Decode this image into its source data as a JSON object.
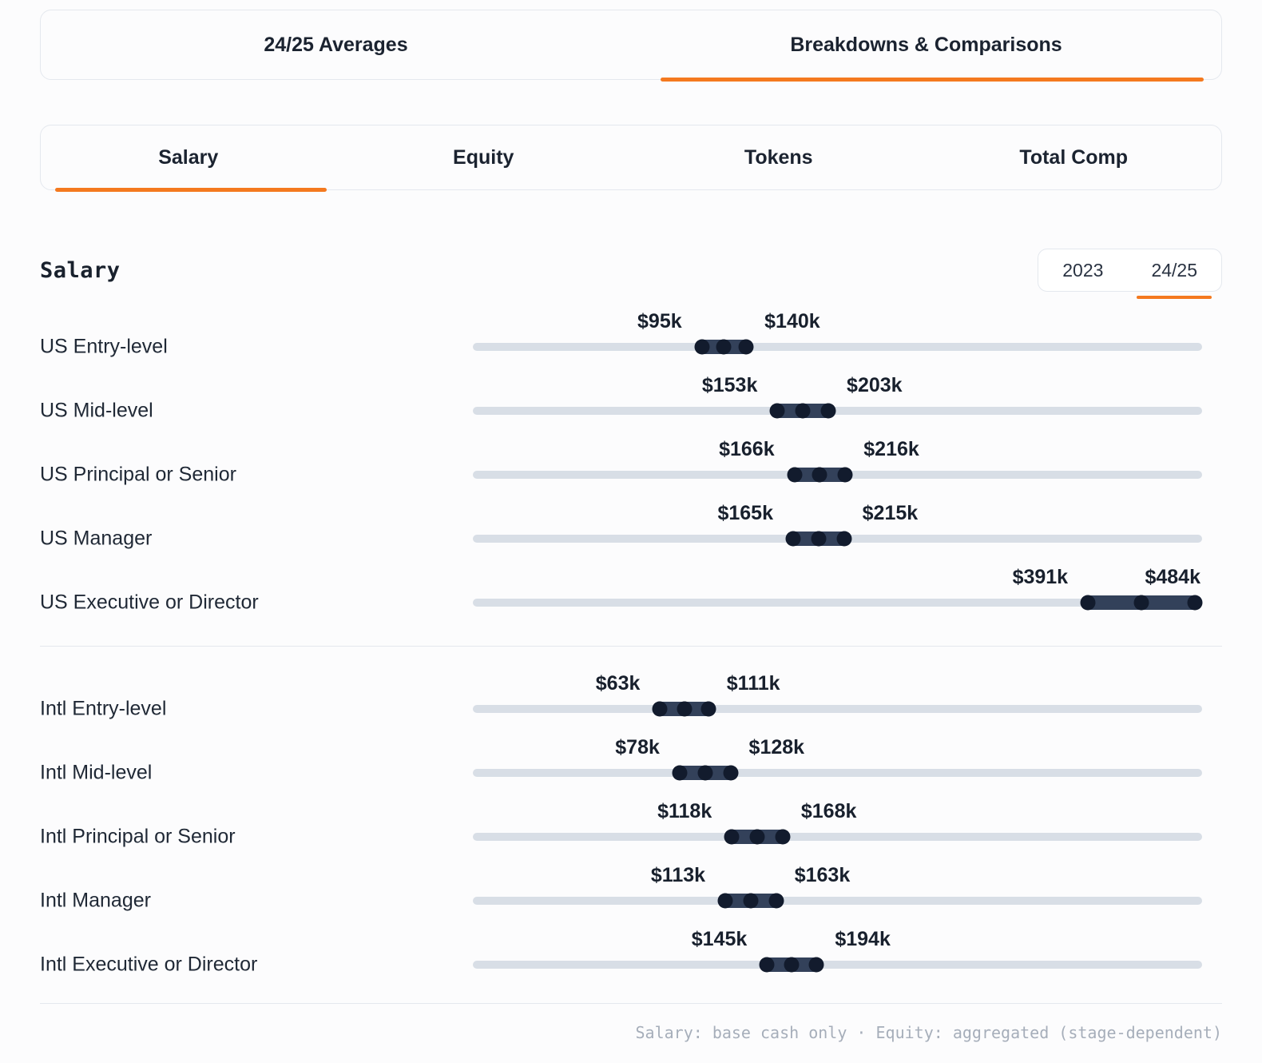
{
  "colors": {
    "accent": "#f4791f",
    "track": "#d8dee6",
    "range": "#33415a",
    "handle": "#121b2d",
    "text": "#1b2330",
    "muted": "#a6aeba",
    "border": "#e4e8ee",
    "bg": "#fcfcfd"
  },
  "view_tabs": {
    "items": [
      {
        "label": "24/25 Averages",
        "active": false
      },
      {
        "label": "Breakdowns & Comparisons",
        "active": true
      }
    ]
  },
  "metric_tabs": {
    "items": [
      {
        "label": "Salary",
        "active": true
      },
      {
        "label": "Equity",
        "active": false
      },
      {
        "label": "Tokens",
        "active": false
      },
      {
        "label": "Total Comp",
        "active": false
      }
    ]
  },
  "section": {
    "title": "Salary"
  },
  "year_toggle": {
    "options": [
      {
        "label": "2023",
        "active": false
      },
      {
        "label": "24/25",
        "active": true
      }
    ]
  },
  "footnote": "Salary: base cash only · Equity: aggregated (stage-dependent)",
  "chart_data": {
    "type": "range-bar",
    "title": "Salary",
    "unit": "USD thousands per year",
    "value_prefix": "$",
    "value_suffix": "k",
    "scale_domain": [
      -75,
      484
    ],
    "legend": "none",
    "groups": [
      {
        "name": "US",
        "rows": [
          {
            "label": "US Entry-level",
            "low": 95,
            "high": 140
          },
          {
            "label": "US Mid-level",
            "low": 153,
            "high": 203
          },
          {
            "label": "US Principal or Senior",
            "low": 166,
            "high": 216
          },
          {
            "label": "US Manager",
            "low": 165,
            "high": 215
          },
          {
            "label": "US Executive or Director",
            "low": 391,
            "high": 484
          }
        ]
      },
      {
        "name": "Intl",
        "rows": [
          {
            "label": "Intl Entry-level",
            "low": 63,
            "high": 111
          },
          {
            "label": "Intl Mid-level",
            "low": 78,
            "high": 128
          },
          {
            "label": "Intl Principal or Senior",
            "low": 118,
            "high": 168
          },
          {
            "label": "Intl Manager",
            "low": 113,
            "high": 163
          },
          {
            "label": "Intl Executive or Director",
            "low": 145,
            "high": 194
          }
        ]
      }
    ]
  }
}
